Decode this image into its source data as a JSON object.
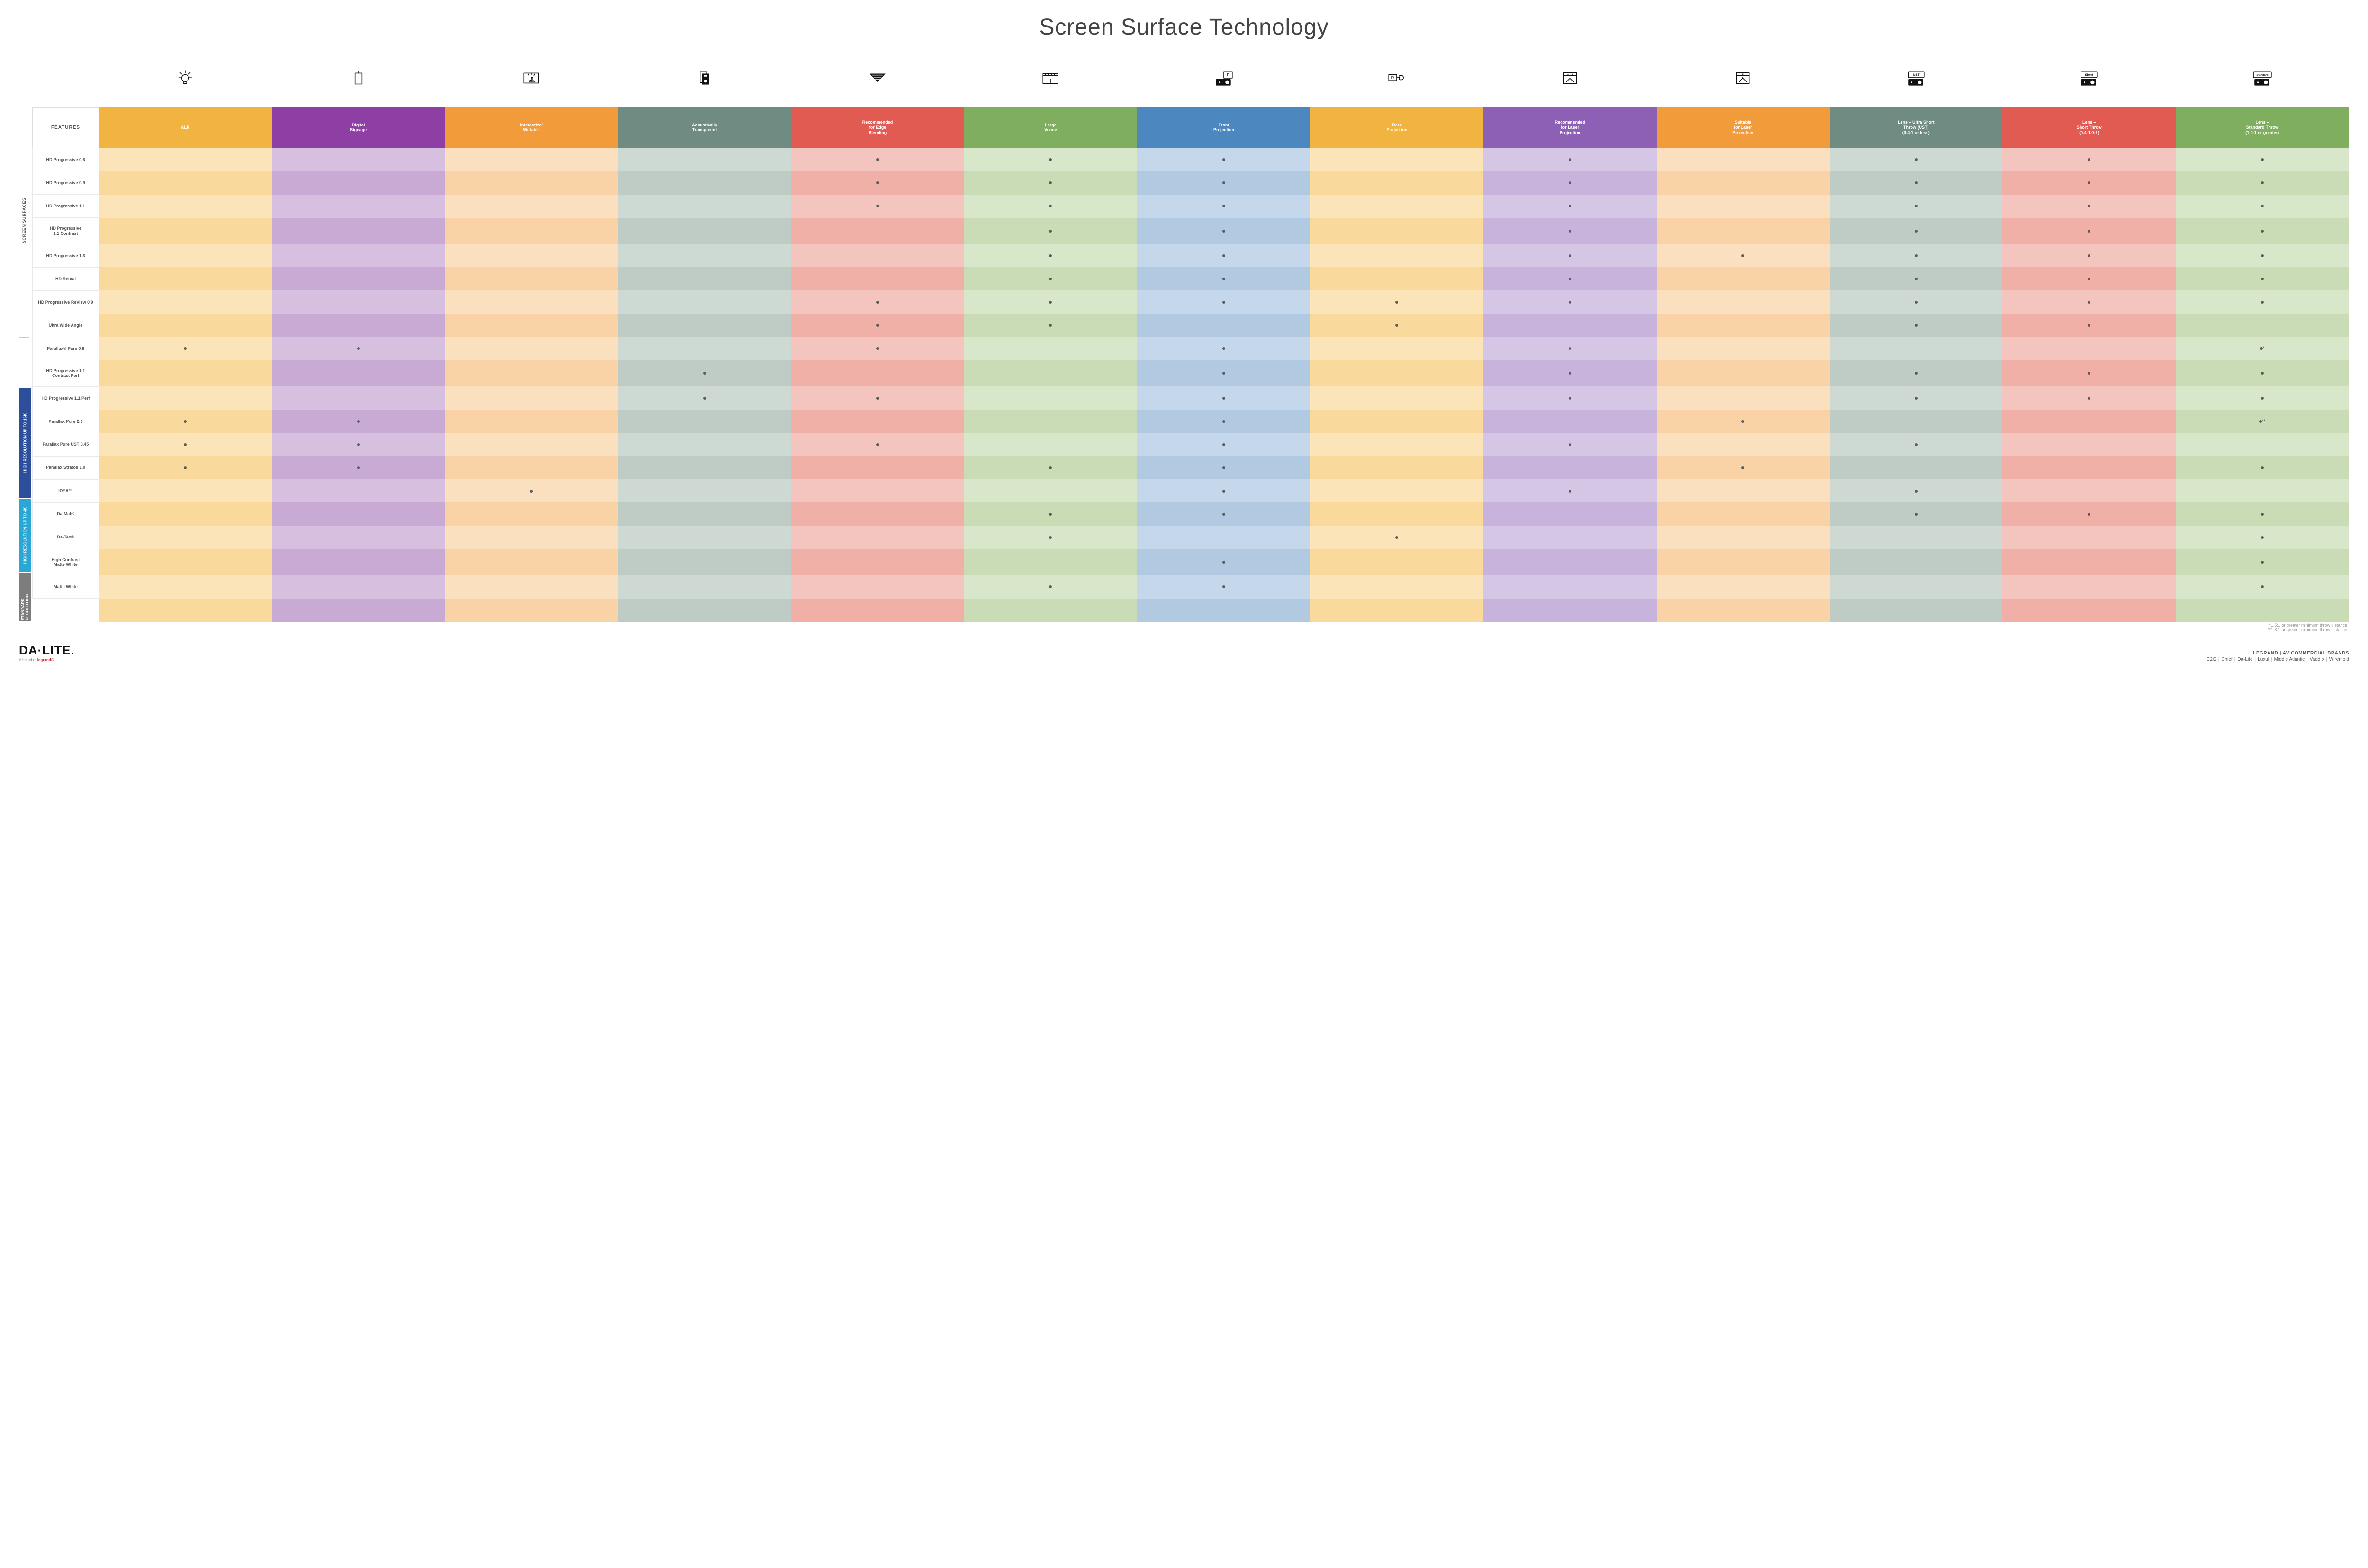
{
  "title": "Screen Surface Technology",
  "features_header": "FEATURES",
  "side_label": "SCREEN SURFACES",
  "columns": [
    {
      "key": "alr",
      "label": "ALR",
      "color": "#f2b441"
    },
    {
      "key": "dsign",
      "label": "Digital\nSignage",
      "color": "#8e3fa3"
    },
    {
      "key": "inter",
      "label": "Interactive/\nWritable",
      "color": "#f29b3a"
    },
    {
      "key": "acous",
      "label": "Acoustically\nTransparent",
      "color": "#6f8b82"
    },
    {
      "key": "edge",
      "label": "Recommended\nfor Edge\nBlending",
      "color": "#e25b52"
    },
    {
      "key": "large",
      "label": "Large\nVenue",
      "color": "#7fae5f"
    },
    {
      "key": "front",
      "label": "Front\nProjection",
      "color": "#4d87c0"
    },
    {
      "key": "rear",
      "label": "Rear\nProjection",
      "color": "#f2b441"
    },
    {
      "key": "rlaser",
      "label": "Recommended\nfor Laser\nProjection",
      "color": "#8e60b5"
    },
    {
      "key": "slaser",
      "label": "Suitable\nfor Laser\nProjection",
      "color": "#f29b3a"
    },
    {
      "key": "ust",
      "label": "Lens – Ultra Short\nThrow (UST)\n(0.4:1 or less)",
      "color": "#6f8b82"
    },
    {
      "key": "short",
      "label": "Lens –\nShort Throw\n(0.4-1.0:1)",
      "color": "#e25b52"
    },
    {
      "key": "std",
      "label": "Lens –\nStandard Throw\n(1.0:1 or greater)",
      "color": "#7fae5f"
    }
  ],
  "tints": {
    "#f2b441": [
      "#fbe4b8",
      "#f9d99c"
    ],
    "#8e3fa3": [
      "#d7c0df",
      "#c9aad5"
    ],
    "#f29b3a": [
      "#fbe0c0",
      "#f9d2a6"
    ],
    "#6f8b82": [
      "#cfd9d4",
      "#bfccc6"
    ],
    "#e25b52": [
      "#f4c4be",
      "#f0b0a8"
    ],
    "#7fae5f": [
      "#d8e6c9",
      "#cadcb6"
    ],
    "#4d87c0": [
      "#c5d7ea",
      "#b2c9e2"
    ],
    "#8e60b5": [
      "#d6c6e5",
      "#c8b3dc"
    ]
  },
  "groups": [
    {
      "label": "HIGH RESOLUTION UP TO 16K",
      "color": "#2d4f9b",
      "rows": [
        {
          "label": "HD Progressive 0.6",
          "marks": {
            "edge": "•",
            "large": "•",
            "front": "•",
            "rlaser": "•",
            "ust": "•",
            "short": "•",
            "std": "•"
          }
        },
        {
          "label": "HD Progressive 0.9",
          "marks": {
            "edge": "•",
            "large": "•",
            "front": "•",
            "rlaser": "•",
            "ust": "•",
            "short": "•",
            "std": "•"
          }
        },
        {
          "label": "HD Progressive 1.1",
          "marks": {
            "edge": "•",
            "large": "•",
            "front": "•",
            "rlaser": "•",
            "ust": "•",
            "short": "•",
            "std": "•"
          }
        },
        {
          "label": "HD Progressive\n1.1 Contrast",
          "marks": {
            "large": "•",
            "front": "•",
            "rlaser": "•",
            "ust": "•",
            "short": "•",
            "std": "•"
          }
        },
        {
          "label": "HD Progressive 1.3",
          "marks": {
            "large": "•",
            "front": "•",
            "rlaser": "•",
            "slaser": "•",
            "ust": "•",
            "short": "•",
            "std": "•"
          }
        },
        {
          "label": "HD Rental",
          "marks": {
            "large": "•",
            "front": "•",
            "rlaser": "•",
            "ust": "•",
            "short": "•",
            "std": "•"
          }
        },
        {
          "label": "HD Progressive ReView 0.9",
          "marks": {
            "edge": "•",
            "large": "•",
            "front": "•",
            "rear": "•",
            "rlaser": "•",
            "ust": "•",
            "short": "•",
            "std": "•"
          }
        },
        {
          "label": "Ultra Wide Angle",
          "marks": {
            "edge": "•",
            "large": "•",
            "rear": "•",
            "ust": "•",
            "short": "•"
          }
        },
        {
          "label": "Parallax® Pure 0.8",
          "marks": {
            "alr": "•",
            "dsign": "•",
            "edge": "•",
            "front": "•",
            "rlaser": "•",
            "std": "•*"
          }
        }
      ]
    },
    {
      "label": "HIGH RESOLUTION UP TO 4K",
      "color": "#2aa7d4",
      "rows": [
        {
          "label": "HD Progressive 1.1\nContrast Perf",
          "marks": {
            "acous": "•",
            "front": "•",
            "rlaser": "•",
            "ust": "•",
            "short": "•",
            "std": "•"
          }
        },
        {
          "label": "HD Progressive 1.1 Perf",
          "marks": {
            "acous": "•",
            "edge": "•",
            "front": "•",
            "rlaser": "•",
            "ust": "•",
            "short": "•",
            "std": "•"
          }
        },
        {
          "label": "Parallax Pure 2.3",
          "marks": {
            "alr": "•",
            "dsign": "•",
            "front": "•",
            "slaser": "•",
            "std": "•**"
          }
        },
        {
          "label": "Parallax Pure UST 0.45",
          "marks": {
            "alr": "•",
            "dsign": "•",
            "edge": "•",
            "front": "•",
            "rlaser": "•",
            "ust": "•"
          }
        },
        {
          "label": "Parallax Stratos 1.0",
          "marks": {
            "alr": "•",
            "dsign": "•",
            "large": "•",
            "front": "•",
            "slaser": "•",
            "std": "•"
          }
        },
        {
          "label": "IDEA™",
          "marks": {
            "inter": "•",
            "front": "•",
            "rlaser": "•",
            "ust": "•"
          }
        }
      ]
    },
    {
      "label": "STANDARD\nRESOLUTION",
      "color": "#7d7d7d",
      "rows": [
        {
          "label": "Da-Mat®",
          "marks": {
            "large": "•",
            "front": "•",
            "ust": "•",
            "short": "•",
            "std": "•"
          }
        },
        {
          "label": "Da-Tex®",
          "marks": {
            "large": "•",
            "rear": "•",
            "std": "•"
          }
        },
        {
          "label": "High Contrast\nMatte White",
          "marks": {
            "front": "•",
            "std": "•"
          }
        },
        {
          "label": "Matte White",
          "marks": {
            "large": "•",
            "front": "•",
            "std": "•"
          }
        }
      ]
    }
  ],
  "footnotes": [
    "*1.5:1 or greater minimum throw distance",
    "**1.8:1 or greater minimum throw distance"
  ],
  "footer": {
    "brand": "DA·LITE.",
    "brand_sub_prefix": "A brand of ",
    "brand_sub_mark": "legrand®",
    "right_line1": "LEGRAND | AV COMMERCIAL BRANDS",
    "right_brands": [
      "C2G",
      "Chief",
      "Da-Lite",
      "Luxul",
      "Middle Atlantic",
      "Vaddio",
      "Wiremold"
    ]
  },
  "icons": [
    "bulb",
    "rect",
    "touch",
    "speaker",
    "tri",
    "venue",
    "front",
    "rear",
    "star3",
    "star1",
    "ust",
    "short",
    "standard"
  ]
}
